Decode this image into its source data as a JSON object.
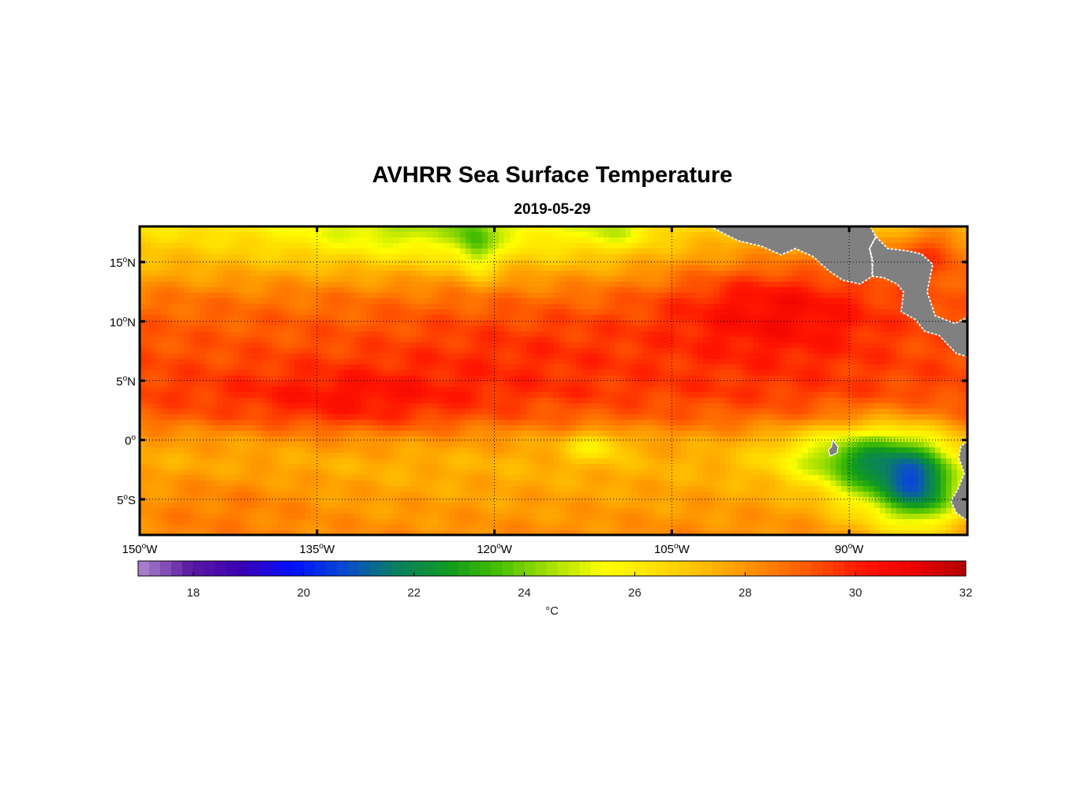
{
  "chart_data": {
    "type": "heatmap",
    "title": "AVHRR Sea Surface Temperature",
    "subtitle": "2019-05-29",
    "x_axis": {
      "range": [
        -150,
        -80
      ],
      "ticks": [
        {
          "value": -150,
          "deg": "150",
          "hemi": "W"
        },
        {
          "value": -135,
          "deg": "135",
          "hemi": "W"
        },
        {
          "value": -120,
          "deg": "120",
          "hemi": "W"
        },
        {
          "value": -105,
          "deg": "105",
          "hemi": "W"
        },
        {
          "value": -90,
          "deg": "90",
          "hemi": "W"
        }
      ]
    },
    "y_axis": {
      "range": [
        -8,
        18
      ],
      "ticks": [
        {
          "value": 15,
          "deg": "15",
          "hemi": "N"
        },
        {
          "value": 10,
          "deg": "10",
          "hemi": "N"
        },
        {
          "value": 5,
          "deg": "5",
          "hemi": "N"
        },
        {
          "value": 0,
          "deg": "0",
          "hemi": ""
        },
        {
          "value": -5,
          "deg": "5",
          "hemi": "S"
        }
      ]
    },
    "grid": true,
    "colorbar": {
      "range": [
        17,
        32
      ],
      "ticks": [
        18,
        20,
        22,
        24,
        26,
        28,
        30,
        32
      ],
      "unit": "°C",
      "colors": [
        "#b088d0",
        "#5a1aa0",
        "#3a00b4",
        "#0010ff",
        "#0a4ad0",
        "#0a8060",
        "#109a20",
        "#48c000",
        "#a8e000",
        "#ffff00",
        "#ffe000",
        "#ffb800",
        "#ff8a00",
        "#ff5500",
        "#ff1500",
        "#ee0000",
        "#b00000"
      ]
    },
    "sst_field": {
      "description_free": true,
      "lat_bands": [
        {
          "lat": 18,
          "temp": 26.3
        },
        {
          "lat": 15,
          "temp": 27.3
        },
        {
          "lat": 12,
          "temp": 28.6
        },
        {
          "lat": 10,
          "temp": 29.0
        },
        {
          "lat": 7,
          "temp": 29.3
        },
        {
          "lat": 4,
          "temp": 29.5
        },
        {
          "lat": 2,
          "temp": 29.0
        },
        {
          "lat": 0,
          "temp": 27.8
        },
        {
          "lat": -2,
          "temp": 27.4
        },
        {
          "lat": -5,
          "temp": 27.8
        },
        {
          "lat": -8,
          "temp": 28.2
        }
      ],
      "features": [
        {
          "lon": -96,
          "lat": 12,
          "rx": 10,
          "ry": 5,
          "delta": 1.8
        },
        {
          "lon": -132,
          "lat": 3,
          "rx": 10,
          "ry": 3,
          "delta": 0.9
        },
        {
          "lon": -118,
          "lat": 8,
          "rx": 12,
          "ry": 4,
          "delta": 0.5
        },
        {
          "lon": -126,
          "lat": 17.5,
          "rx": 12,
          "ry": 2.5,
          "delta": -1.8
        },
        {
          "lon": -121.5,
          "lat": 16,
          "rx": 1.5,
          "ry": 2.5,
          "delta": -2.0
        },
        {
          "lon": -110,
          "lat": 17.5,
          "rx": 3,
          "ry": 1.5,
          "delta": -1.4
        },
        {
          "lon": -111.5,
          "lat": -0.5,
          "rx": 2.5,
          "ry": 1.2,
          "delta": -1.8
        },
        {
          "lon": -91,
          "lat": -1.5,
          "rx": 6,
          "ry": 2.5,
          "delta": -2.5
        },
        {
          "lon": -86,
          "lat": -3,
          "rx": 5,
          "ry": 4,
          "delta": -4.5
        },
        {
          "lon": -83.5,
          "lat": -4.5,
          "rx": 3,
          "ry": 3,
          "delta": -3.0
        },
        {
          "lon": -83,
          "lat": 16,
          "rx": 4,
          "ry": 3,
          "delta": 2.2
        },
        {
          "lon": -143,
          "lat": -5,
          "rx": 8,
          "ry": 3,
          "delta": 0.6
        }
      ]
    }
  }
}
